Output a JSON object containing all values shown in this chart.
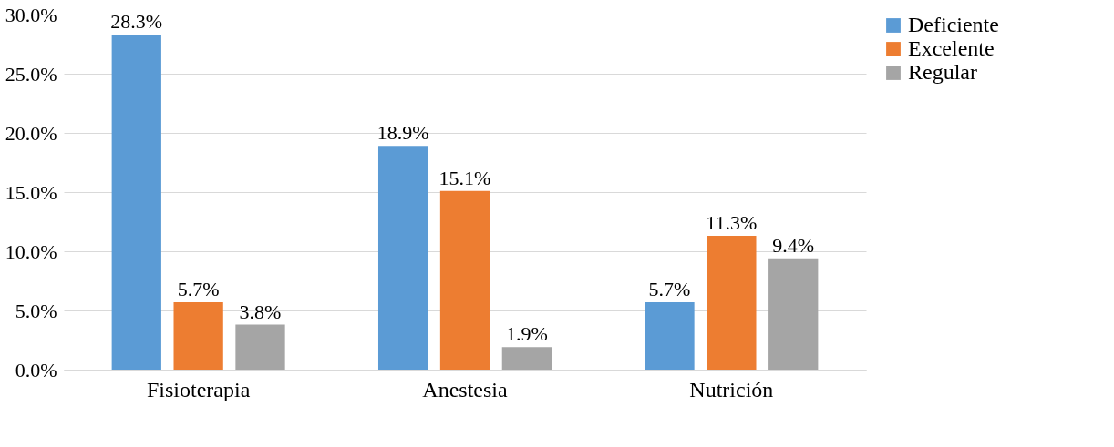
{
  "chart_data": {
    "type": "bar",
    "categories": [
      "Fisioterapia",
      "Anestesia",
      "Nutrición"
    ],
    "series": [
      {
        "name": "Deficiente",
        "color": "#5b9bd5",
        "values": [
          28.3,
          18.9,
          5.7
        ],
        "value_labels": [
          "28.3%",
          "18.9%",
          "5.7%"
        ]
      },
      {
        "name": "Excelente",
        "color": "#ed7d31",
        "values": [
          5.7,
          15.1,
          11.3
        ],
        "value_labels": [
          "5.7%",
          "15.1%",
          "11.3%"
        ]
      },
      {
        "name": "Regular",
        "color": "#a5a5a5",
        "values": [
          3.8,
          1.9,
          9.4
        ],
        "value_labels": [
          "3.8%",
          "1.9%",
          "9.4%"
        ]
      }
    ],
    "ylim": [
      0,
      30
    ],
    "yticks": [
      {
        "value": 0,
        "label": "0.0%"
      },
      {
        "value": 5,
        "label": "5.0%"
      },
      {
        "value": 10,
        "label": "10.0%"
      },
      {
        "value": 15,
        "label": "15.0%"
      },
      {
        "value": 20,
        "label": "20.0%"
      },
      {
        "value": 25,
        "label": "25.0%"
      },
      {
        "value": 30,
        "label": "30.0%"
      }
    ],
    "grid": "y",
    "legend": "right"
  }
}
